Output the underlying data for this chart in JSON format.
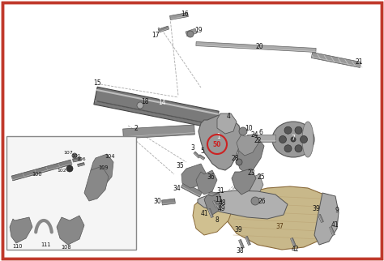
{
  "border_color": "#c0392b",
  "border_linewidth": 2.5,
  "background_color": "#ffffff",
  "diagram_bg": "#f0eeeb",
  "gray_dark": "#555555",
  "gray_mid": "#888888",
  "gray_light": "#bbbbbb",
  "wood_color": "#c8b88a",
  "wood_dark": "#8a6a3a",
  "red_circle": "#cc2222"
}
